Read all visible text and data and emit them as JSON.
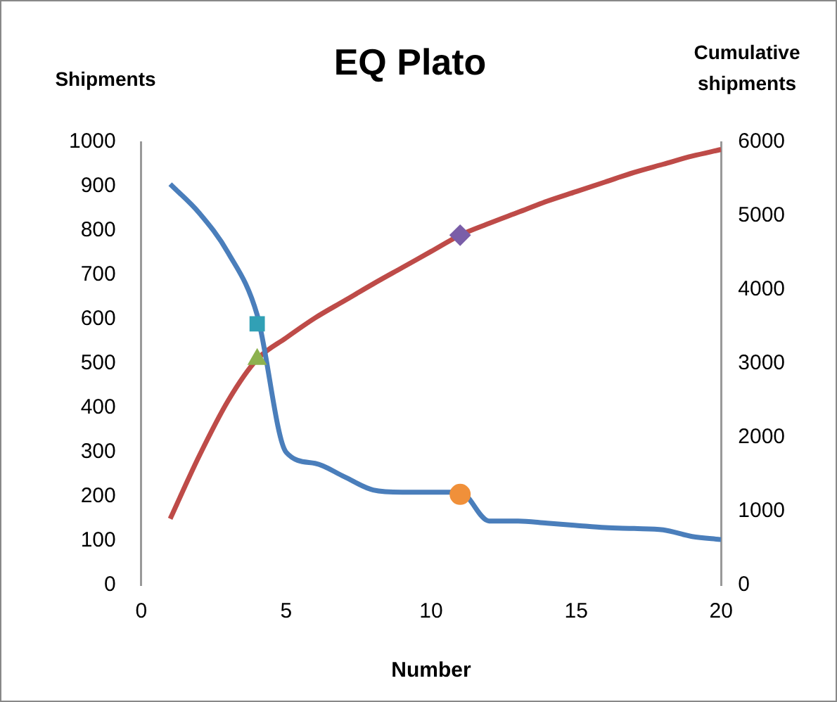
{
  "chart_data": {
    "type": "line",
    "title": "EQ Plato",
    "xlabel": "Number",
    "ylabel": "Shipments",
    "y2label": "Cumulative shipments",
    "x": [
      1,
      2,
      3,
      4,
      5,
      6,
      7,
      8,
      9,
      10,
      11,
      12,
      13,
      14,
      15,
      16,
      17,
      18,
      19,
      20
    ],
    "xlim": [
      0,
      20
    ],
    "xticks": [
      0,
      5,
      10,
      15,
      20
    ],
    "ylim": [
      0,
      1000
    ],
    "yticks": [
      0,
      100,
      200,
      300,
      400,
      500,
      600,
      700,
      800,
      900,
      1000
    ],
    "y2lim": [
      0,
      6000
    ],
    "y2ticks": [
      0,
      1000,
      2000,
      3000,
      4000,
      5000,
      6000
    ],
    "grid": false,
    "legend": false,
    "marker": "none",
    "series": [
      {
        "color": "#4a7ebb",
        "values": [
          905,
          840,
          750,
          610,
          300,
          275,
          245,
          215,
          210,
          210,
          210,
          145,
          145,
          140,
          135,
          130,
          128,
          125,
          110,
          103
        ]
      },
      {
        "axis": "y2",
        "color": "#be4b48",
        "values": [
          900,
          1750,
          2500,
          3060,
          3350,
          3620,
          3850,
          4080,
          4300,
          4520,
          4740,
          4900,
          5050,
          5200,
          5330,
          5460,
          5590,
          5700,
          5810,
          5900
        ]
      },
      {
        "type": "scatter",
        "marker": "square",
        "color": "#31a0b5",
        "values": [
          null,
          null,
          null,
          590,
          null,
          null,
          null,
          null,
          null,
          null,
          null,
          null,
          null,
          null,
          null,
          null,
          null,
          null,
          null,
          null
        ]
      },
      {
        "type": "scatter",
        "marker": "triangle",
        "color": "#8db24f",
        "values": [
          null,
          null,
          null,
          510,
          null,
          null,
          null,
          null,
          null,
          null,
          null,
          null,
          null,
          null,
          null,
          null,
          null,
          null,
          null,
          null
        ]
      },
      {
        "type": "scatter",
        "marker": "diamond",
        "axis": "y2",
        "color": "#7a5ea8",
        "values": [
          null,
          null,
          null,
          null,
          null,
          null,
          null,
          null,
          null,
          null,
          4740,
          null,
          null,
          null,
          null,
          null,
          null,
          null,
          null,
          null
        ]
      },
      {
        "type": "scatter",
        "marker": "circle",
        "color": "#f0903a",
        "values": [
          null,
          null,
          null,
          null,
          null,
          null,
          null,
          null,
          null,
          null,
          205,
          null,
          null,
          null,
          null,
          null,
          null,
          null,
          null,
          null
        ]
      }
    ]
  }
}
